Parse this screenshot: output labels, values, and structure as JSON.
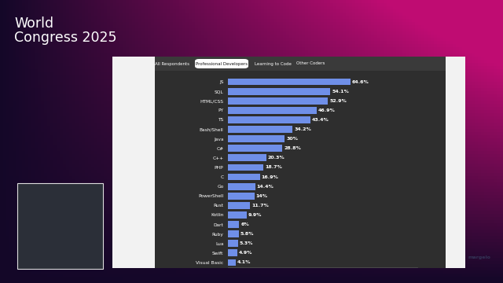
{
  "slide": {
    "title_lines": [
      "World",
      "Congress 2025"
    ],
    "tabs": [
      "All Respondents",
      "Professional Developers",
      "Learning to Code",
      "Other Coders"
    ],
    "selected_tab": "Professional Developers",
    "watermark": "margelo"
  },
  "chart_data": {
    "type": "bar",
    "orientation": "horizontal",
    "categories": [
      "JS",
      "SQL",
      "HTML/CSS",
      "PY",
      "TS",
      "Bash/Shell",
      "Java",
      "C#",
      "C++",
      "PHP",
      "C",
      "Go",
      "PowerShell",
      "Rust",
      "Kotlin",
      "Dart",
      "Ruby",
      "Lua",
      "Swift",
      "Visual Basic"
    ],
    "values": [
      64.6,
      54.1,
      52.9,
      46.9,
      43.4,
      34.2,
      30,
      28.8,
      20.3,
      18.7,
      16.9,
      14.4,
      14,
      11.7,
      9.9,
      6,
      5.8,
      5.3,
      4.9,
      4.1
    ],
    "value_labels": [
      "64.6%",
      "54.1%",
      "52.9%",
      "46.9%",
      "43.4%",
      "34.2%",
      "30%",
      "28.8%",
      "20.3%",
      "18.7%",
      "16.9%",
      "14.4%",
      "14%",
      "11.7%",
      "9.9%",
      "6%",
      "5.8%",
      "5.3%",
      "4.9%",
      "4.1%"
    ],
    "color": "#6f8fe8",
    "xlim": [
      0,
      100
    ],
    "data_labels": true,
    "tick_labels": "y",
    "grid": false
  }
}
